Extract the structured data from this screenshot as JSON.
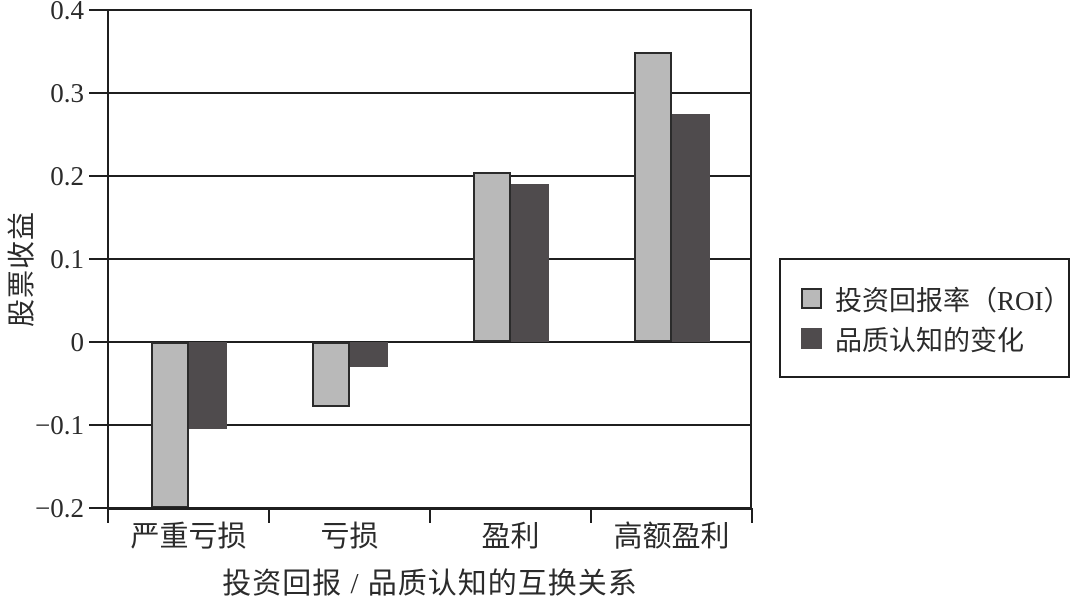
{
  "chart_data": {
    "type": "bar",
    "title": "",
    "xlabel": "投资回报 / 品质认知的互换关系",
    "ylabel": "股票收益",
    "categories": [
      "严重亏损",
      "亏损",
      "盈利",
      "高额盈利"
    ],
    "series": [
      {
        "name": "投资回报率（ROI）",
        "color": "#b9b9b9",
        "border_color": "#2b2b2b",
        "values": [
          -0.2,
          -0.078,
          0.205,
          0.35
        ]
      },
      {
        "name": "品质认知的变化",
        "color": "#4f4b4d",
        "border_color": "#4f4b4d",
        "values": [
          -0.105,
          -0.03,
          0.19,
          0.275
        ]
      }
    ],
    "ylim": [
      -0.2,
      0.4
    ],
    "ytick_step": 0.1,
    "ytick_labels": [
      "0.4",
      "0.3",
      "0.2",
      "0.1",
      "0",
      "−0.1",
      "−0.2"
    ],
    "grid": true,
    "legend_position": "right-middle"
  },
  "colors": {
    "axis": "#1f1f1f",
    "text": "#2b2b2b",
    "background": "#ffffff"
  }
}
